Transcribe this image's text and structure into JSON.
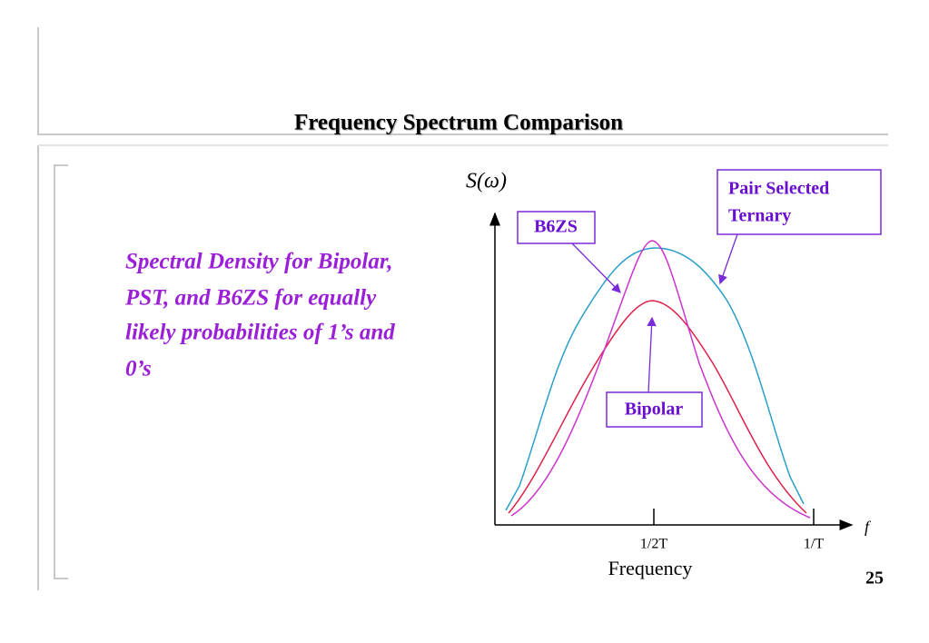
{
  "header": {
    "title": "Frequency Spectrum Comparison"
  },
  "body": {
    "lines": [
      "Spectral Density for Bipolar,",
      "PST, and B6ZS for equally",
      "likely probabilities of 1’s and",
      "0’s"
    ]
  },
  "figure": {
    "y_label": "S(ω)",
    "x_axis_symbol": "f",
    "x_label": "Frequency",
    "ticks": [
      "1/2T",
      "1/T"
    ],
    "labels": {
      "b6zs": "B6ZS",
      "pst": [
        "Pair Selected",
        "Ternary"
      ],
      "bipolar": "Bipolar"
    }
  },
  "footer": {
    "page_number": "25"
  }
}
